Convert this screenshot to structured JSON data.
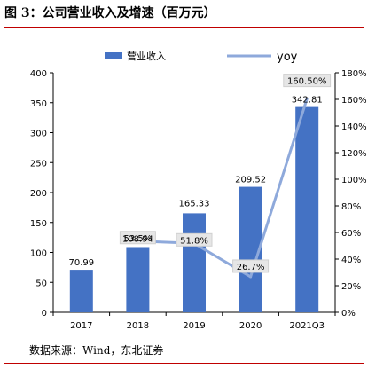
{
  "header": {
    "title": "图 3：公司营业收入及增速（百万元）"
  },
  "footer": {
    "source": "数据来源：Wind，东北证券"
  },
  "chart_data": {
    "type": "bar",
    "categories": [
      "2017",
      "2018",
      "2019",
      "2020",
      "2021Q3"
    ],
    "series": [
      {
        "name": "营业收入",
        "kind": "bar",
        "axis": "left",
        "values": [
          70.99,
          108.94,
          165.33,
          209.52,
          342.81
        ],
        "labels": [
          "70.99",
          "108.94",
          "165.33",
          "209.52",
          "342.81"
        ],
        "color": "#4472c4"
      },
      {
        "name": "yoy",
        "kind": "line",
        "axis": "right",
        "values": [
          null,
          53.5,
          51.8,
          26.7,
          160.5
        ],
        "labels": [
          "",
          "53.5%",
          "51.8%",
          "26.7%",
          "160.50%"
        ],
        "color": "#8ea9db"
      }
    ],
    "y_left": {
      "min": 0,
      "max": 400,
      "step": 50,
      "tick_labels": [
        "0",
        "50",
        "100",
        "150",
        "200",
        "250",
        "300",
        "350",
        "400"
      ]
    },
    "y_right": {
      "min": 0,
      "max": 180,
      "step": 20,
      "tick_labels": [
        "0%",
        "20%",
        "40%",
        "60%",
        "80%",
        "100%",
        "120%",
        "140%",
        "160%",
        "180%"
      ]
    },
    "legend_position": "top",
    "grid": false
  }
}
